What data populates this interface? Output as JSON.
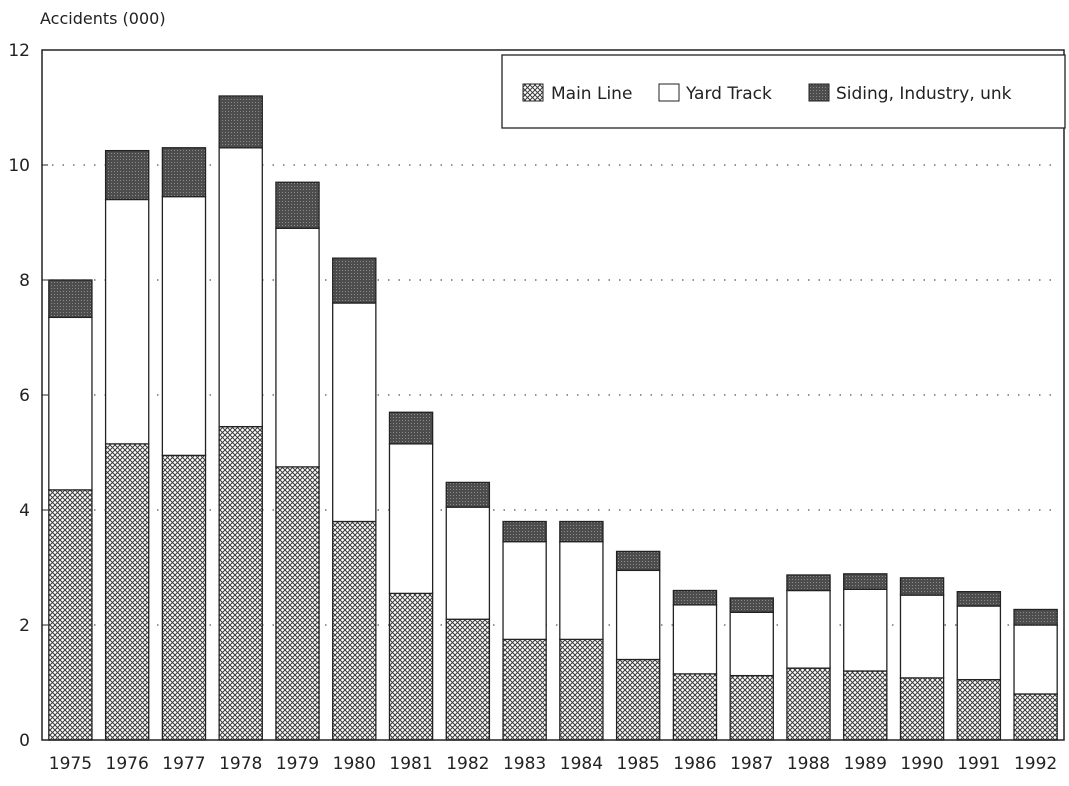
{
  "chart_data": {
    "type": "bar",
    "stacked": true,
    "ylabel": "Accidents (000)",
    "ylim": [
      0,
      12
    ],
    "yticks": [
      "0",
      "2",
      "4",
      "6",
      "8",
      "10",
      "12"
    ],
    "grid": "dotted horizontal",
    "legend_position": "top-right",
    "categories": [
      "1975",
      "1976",
      "1977",
      "1978",
      "1979",
      "1980",
      "1981",
      "1982",
      "1983",
      "1984",
      "1985",
      "1986",
      "1987",
      "1988",
      "1989",
      "1990",
      "1991",
      "1992"
    ],
    "series": [
      {
        "name": "Main Line",
        "pattern": "crosshatch",
        "color": "#555555",
        "values": [
          4.35,
          5.15,
          4.95,
          5.45,
          4.75,
          3.8,
          2.55,
          2.1,
          1.75,
          1.75,
          1.4,
          1.15,
          1.12,
          1.25,
          1.2,
          1.08,
          1.05,
          0.8
        ]
      },
      {
        "name": "Yard Track",
        "pattern": "white",
        "color": "#ffffff",
        "values": [
          3.0,
          4.25,
          4.5,
          4.85,
          4.15,
          3.8,
          2.6,
          1.95,
          1.7,
          1.7,
          1.55,
          1.2,
          1.1,
          1.35,
          1.42,
          1.44,
          1.28,
          1.2
        ]
      },
      {
        "name": "Siding, Industry, unk",
        "pattern": "dark",
        "color": "#4a4a4a",
        "values": [
          0.65,
          0.85,
          0.85,
          0.9,
          0.8,
          0.78,
          0.55,
          0.43,
          0.35,
          0.35,
          0.33,
          0.25,
          0.25,
          0.27,
          0.27,
          0.3,
          0.25,
          0.27
        ]
      }
    ]
  }
}
